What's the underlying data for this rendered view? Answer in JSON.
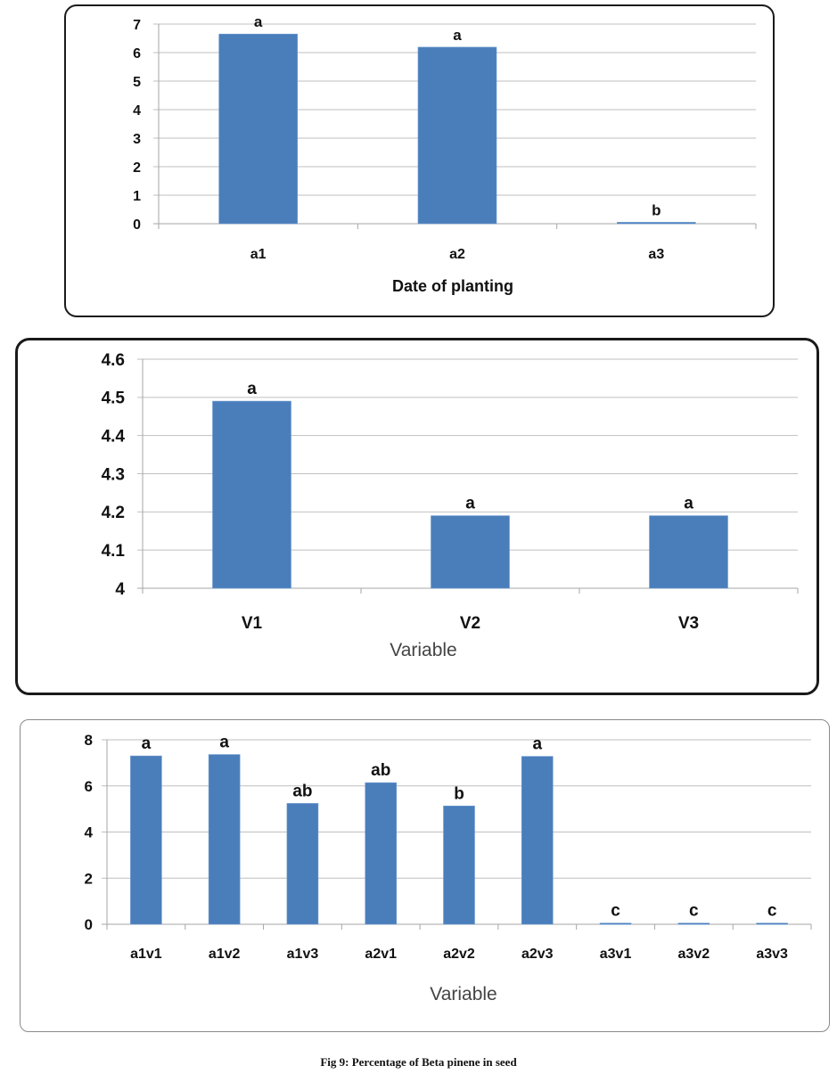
{
  "caption": "Fig 9: Percentage of Beta pinene in seed",
  "colors": {
    "bar": "#4a7ebb",
    "grid": "#bfbfbf",
    "text": "#111111"
  },
  "chart_data": [
    {
      "type": "bar",
      "title": "",
      "xlabel": "Date of planting",
      "ylabel": "",
      "categories": [
        "a1",
        "a2",
        "a3"
      ],
      "values": [
        6.65,
        6.19,
        0.05
      ],
      "significance_labels": [
        "a",
        "a",
        "b"
      ],
      "ylim": [
        0,
        7
      ],
      "yticks": [
        0,
        1,
        2,
        3,
        4,
        5,
        6,
        7
      ],
      "grid": true
    },
    {
      "type": "bar",
      "title": "",
      "xlabel": "Variable",
      "ylabel": "",
      "categories": [
        "V1",
        "V2",
        "V3"
      ],
      "values": [
        4.49,
        4.19,
        4.19
      ],
      "significance_labels": [
        "a",
        "a",
        "a"
      ],
      "ylim": [
        4,
        4.6
      ],
      "yticks": [
        "4",
        "4.1",
        "4.2",
        "4.3",
        "4.4",
        "4.5",
        "4.6"
      ],
      "grid": true
    },
    {
      "type": "bar",
      "title": "",
      "xlabel": "Variable",
      "ylabel": "",
      "categories": [
        "a1v1",
        "a1v2",
        "a1v3",
        "a2v1",
        "a2v2",
        "a2v3",
        "a3v1",
        "a3v2",
        "a3v3"
      ],
      "values": [
        7.3,
        7.36,
        5.24,
        6.14,
        5.13,
        7.28,
        0.05,
        0.05,
        0.05
      ],
      "significance_labels": [
        "a",
        "a",
        "ab",
        "ab",
        "b",
        "a",
        "c",
        "c",
        "c"
      ],
      "ylim": [
        0,
        8
      ],
      "yticks": [
        0,
        2,
        4,
        6,
        8
      ],
      "grid": true
    }
  ]
}
